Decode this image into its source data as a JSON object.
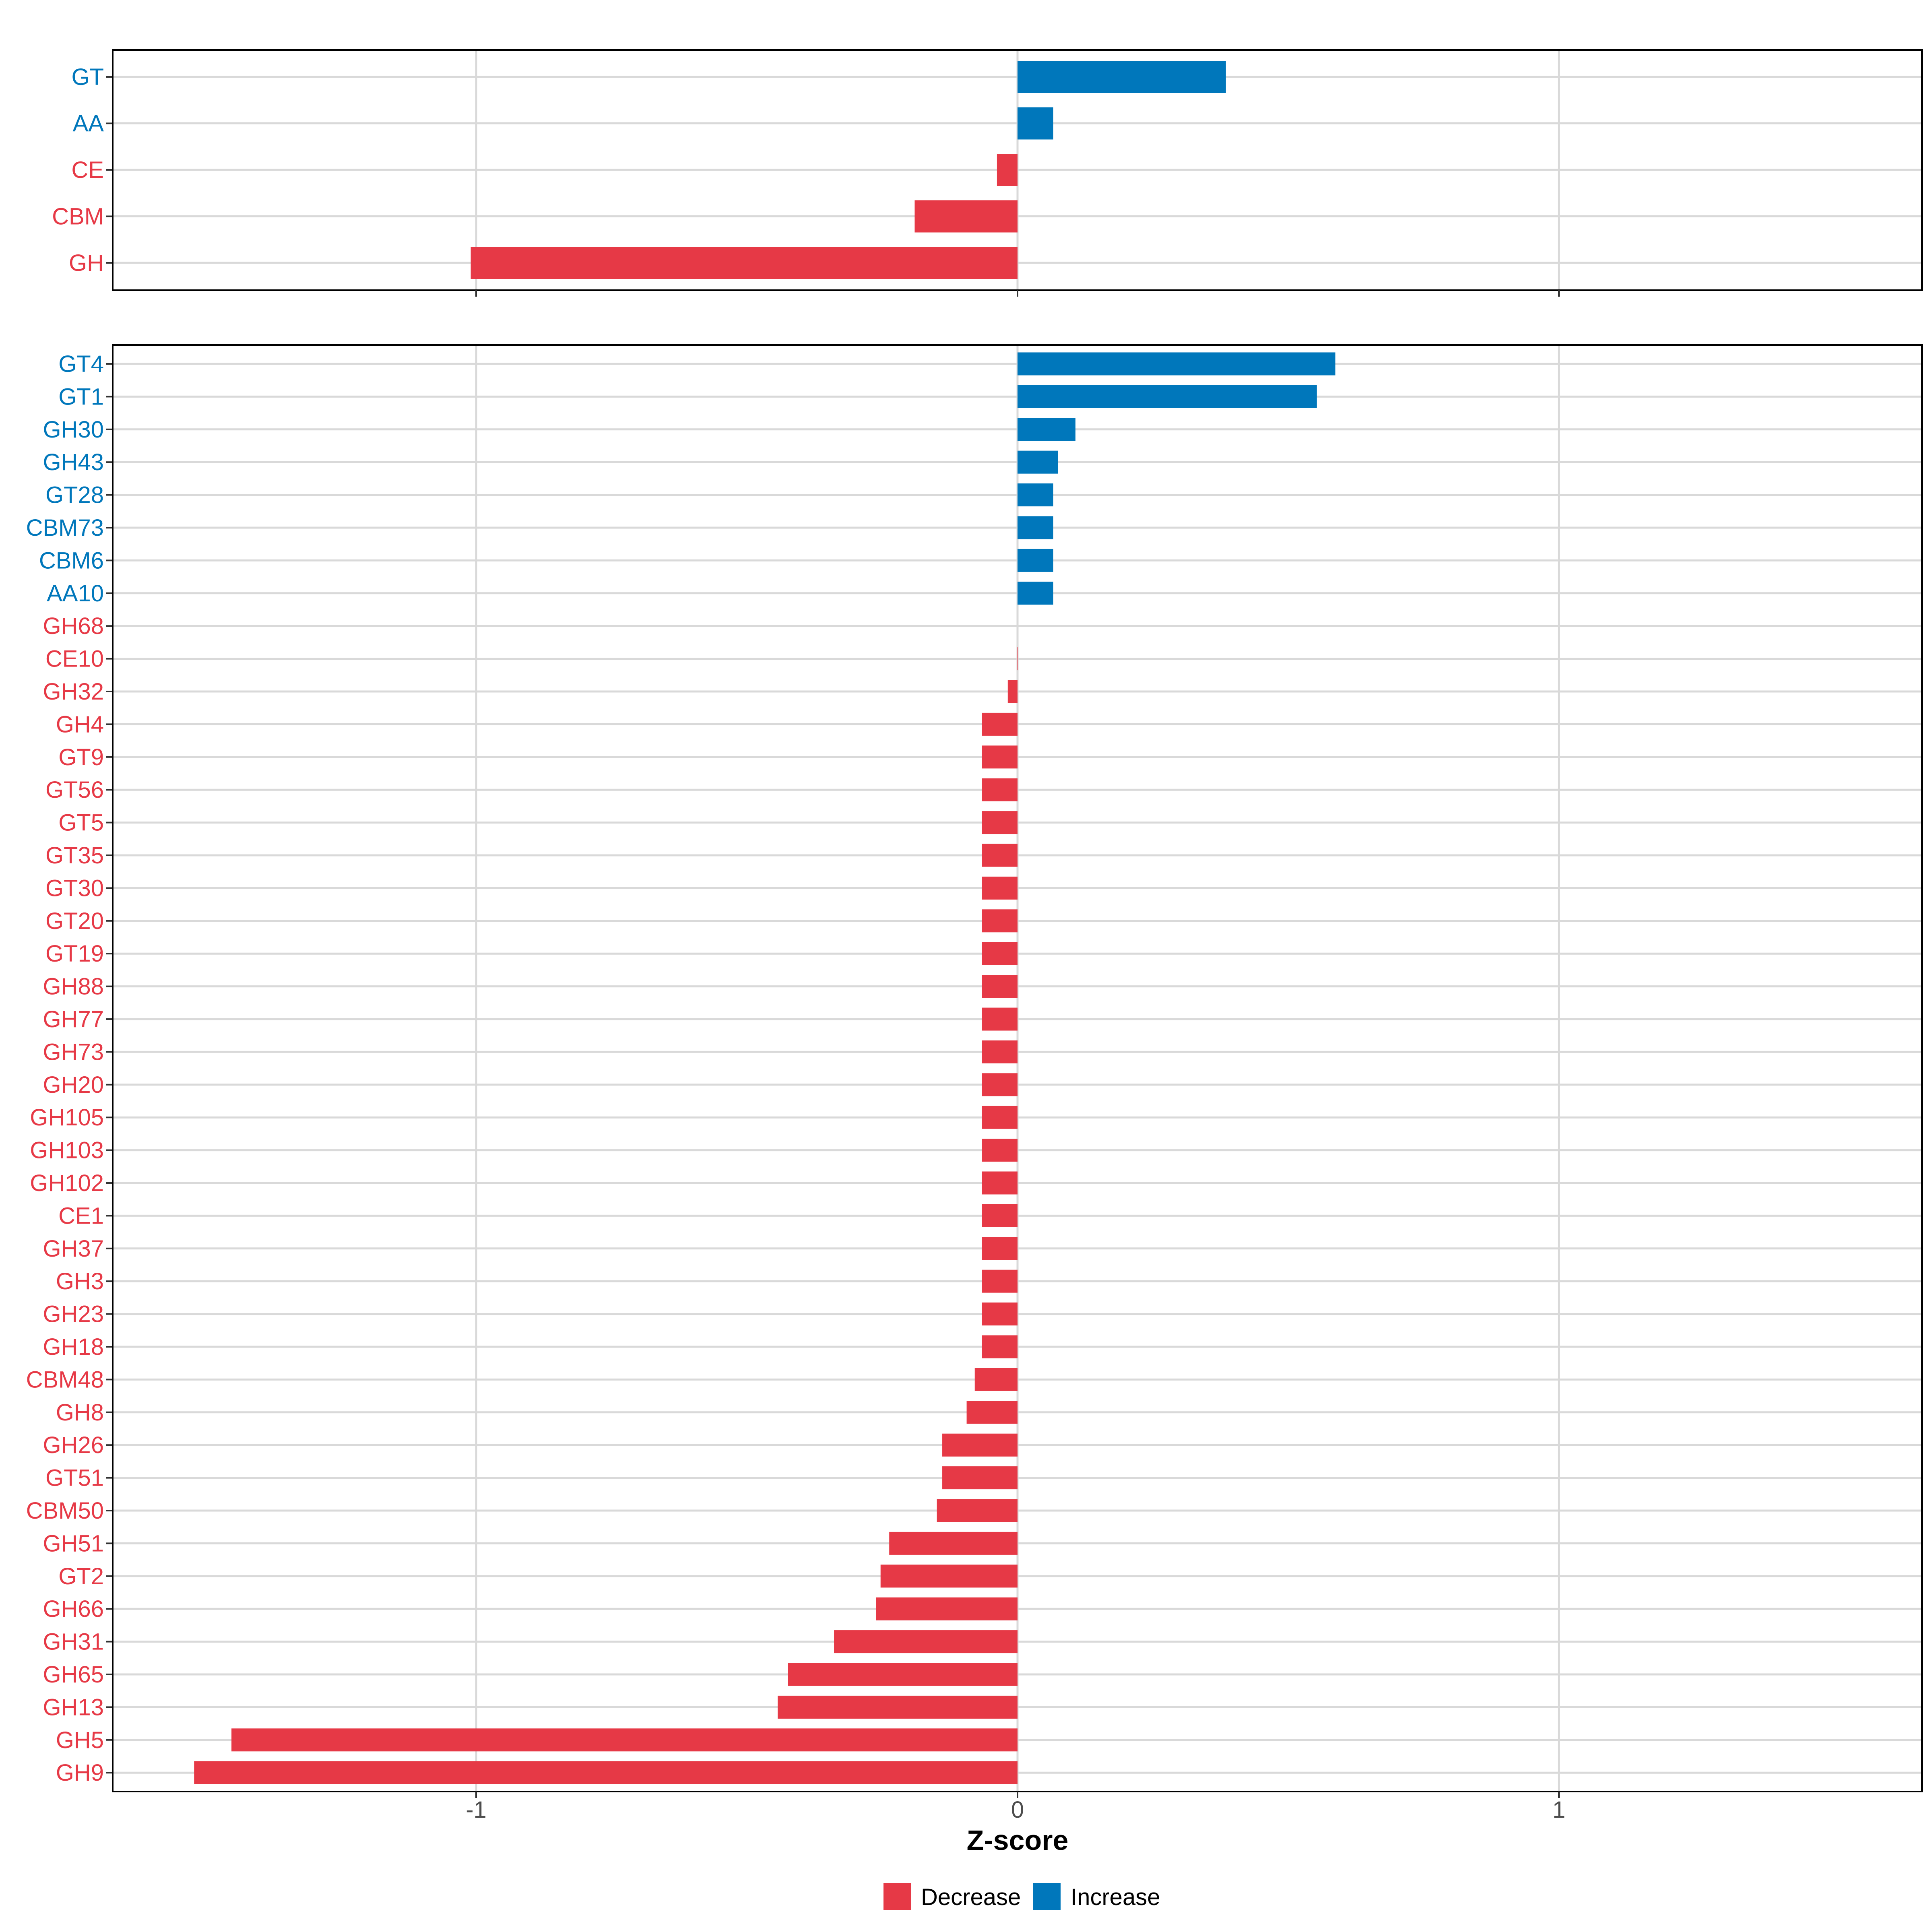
{
  "chart_data": {
    "type": "bar",
    "orientation": "horizontal",
    "xlabel": "Z-score",
    "xlim": [
      -1.67,
      1.67
    ],
    "x_ticks": [
      -1,
      0,
      1
    ],
    "x_tick_labels": [
      "-1",
      "0",
      "1"
    ],
    "grid": true,
    "legend_position": "bottom",
    "legend": [
      {
        "key": "decrease",
        "label": "Decrease",
        "color": "#E63946"
      },
      {
        "key": "increase",
        "label": "Increase",
        "color": "#0077BB"
      }
    ],
    "panels": [
      {
        "name": "class-level",
        "categories": [
          "GT",
          "AA",
          "CE",
          "CBM",
          "GH"
        ],
        "values": [
          0.385,
          0.066,
          -0.038,
          -0.19,
          -1.01
        ],
        "directions": [
          "increase",
          "increase",
          "decrease",
          "decrease",
          "decrease"
        ]
      },
      {
        "name": "family-level",
        "categories": [
          "GT4",
          "GT1",
          "GH30",
          "GH43",
          "GT28",
          "CBM73",
          "CBM6",
          "AA10",
          "GH68",
          "CE10",
          "GH32",
          "GH4",
          "GT9",
          "GT56",
          "GT5",
          "GT35",
          "GT30",
          "GT20",
          "GT19",
          "GH88",
          "GH77",
          "GH73",
          "GH20",
          "GH105",
          "GH103",
          "GH102",
          "CE1",
          "GH37",
          "GH3",
          "GH23",
          "GH18",
          "CBM48",
          "GH8",
          "GH26",
          "GT51",
          "CBM50",
          "GH51",
          "GT2",
          "GH66",
          "GH31",
          "GH65",
          "GH13",
          "GH5",
          "GH9"
        ],
        "values": [
          0.587,
          0.553,
          0.107,
          0.075,
          0.066,
          0.066,
          0.066,
          0.066,
          0.0,
          -0.001,
          -0.018,
          -0.066,
          -0.066,
          -0.066,
          -0.066,
          -0.066,
          -0.066,
          -0.066,
          -0.066,
          -0.066,
          -0.066,
          -0.066,
          -0.066,
          -0.066,
          -0.066,
          -0.066,
          -0.066,
          -0.066,
          -0.066,
          -0.066,
          -0.066,
          -0.079,
          -0.094,
          -0.139,
          -0.139,
          -0.149,
          -0.237,
          -0.253,
          -0.261,
          -0.339,
          -0.424,
          -0.443,
          -1.452,
          -1.521
        ],
        "directions": [
          "increase",
          "increase",
          "increase",
          "increase",
          "increase",
          "increase",
          "increase",
          "increase",
          "decrease",
          "decrease",
          "decrease",
          "decrease",
          "decrease",
          "decrease",
          "decrease",
          "decrease",
          "decrease",
          "decrease",
          "decrease",
          "decrease",
          "decrease",
          "decrease",
          "decrease",
          "decrease",
          "decrease",
          "decrease",
          "decrease",
          "decrease",
          "decrease",
          "decrease",
          "decrease",
          "decrease",
          "decrease",
          "decrease",
          "decrease",
          "decrease",
          "decrease",
          "decrease",
          "decrease",
          "decrease",
          "decrease",
          "decrease",
          "decrease",
          "decrease"
        ]
      }
    ]
  }
}
